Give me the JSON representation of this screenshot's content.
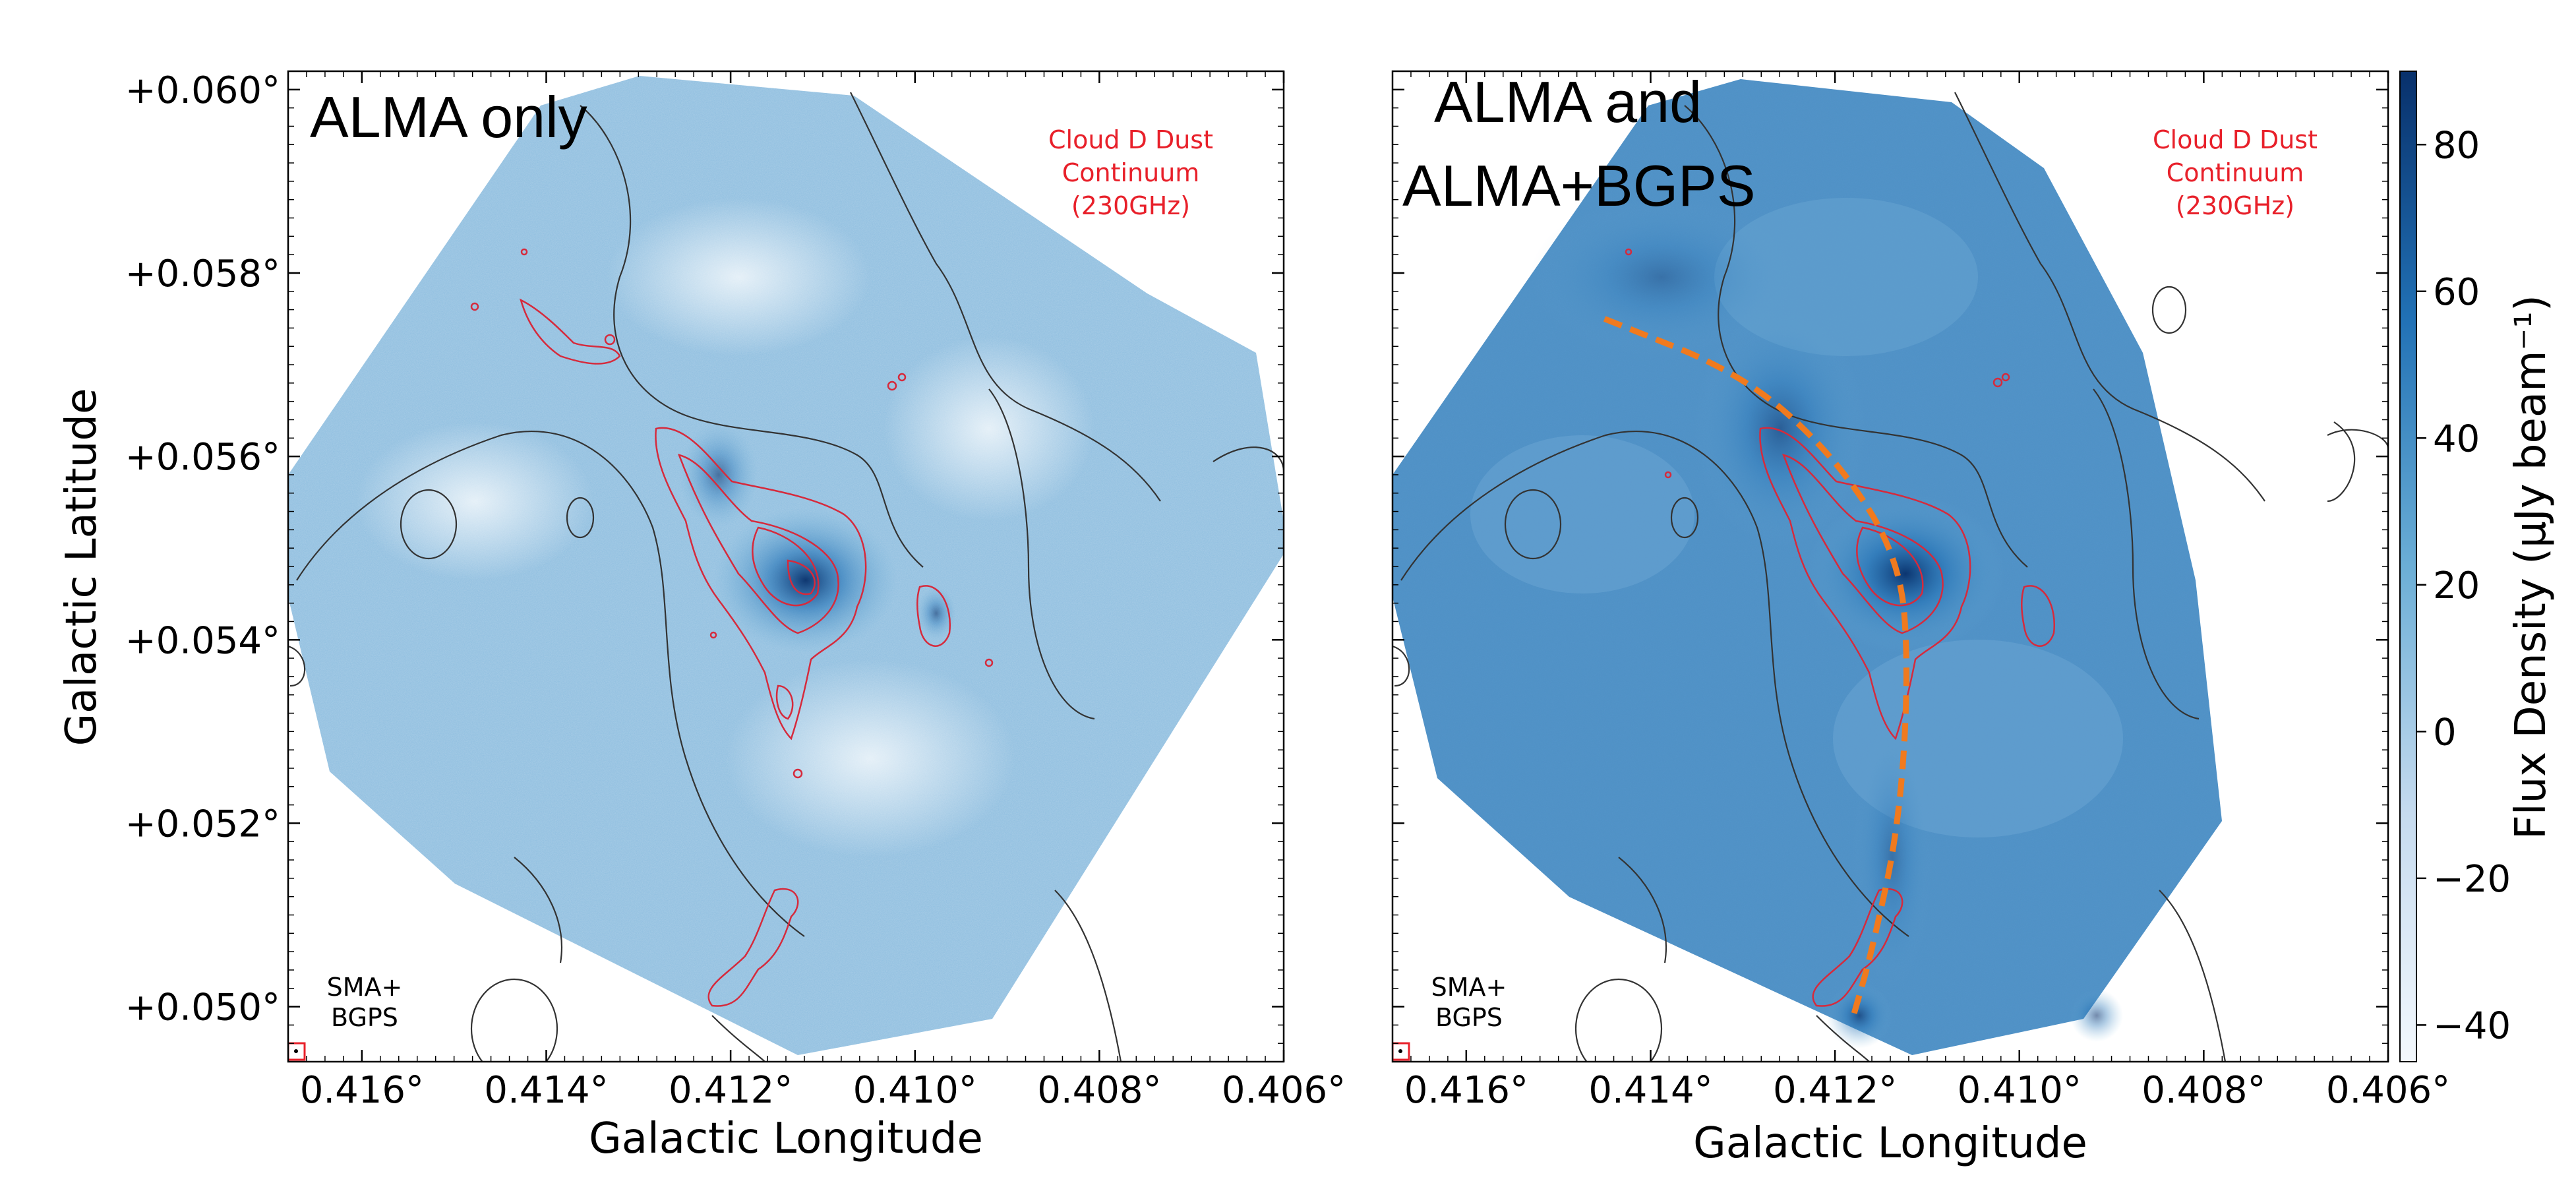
{
  "chart_data": [
    {
      "type": "heatmap",
      "panel": "left",
      "title": "ALMA only",
      "annotation": [
        "Cloud D Dust",
        "Continuum",
        "(230GHz)"
      ],
      "beam_label": [
        "SMA+",
        "BGPS"
      ],
      "xlabel": "Galactic Longitude",
      "ylabel": "Galactic Latitude",
      "xlim": [
        0.4168,
        0.406
      ],
      "ylim": [
        0.0494,
        0.0602
      ],
      "x_ticks": [
        0.416,
        0.414,
        0.412,
        0.41,
        0.408,
        0.406
      ],
      "x_tick_labels": [
        "0.416°",
        "0.414°",
        "0.412°",
        "0.410°",
        "0.408°",
        "0.406°"
      ],
      "y_ticks": [
        0.06,
        0.058,
        0.056,
        0.054,
        0.052,
        0.05
      ],
      "y_tick_labels": [
        "+0.060°",
        "+0.058°",
        "+0.056°",
        "+0.054°",
        "+0.052°",
        "+0.050°"
      ],
      "peak_position": [
        0.4111,
        0.0547
      ]
    },
    {
      "type": "heatmap",
      "panel": "right",
      "title": [
        "ALMA and",
        "ALMA+BGPS"
      ],
      "annotation": [
        "Cloud D Dust",
        "Continuum",
        "(230GHz)"
      ],
      "beam_label": [
        "SMA+",
        "BGPS"
      ],
      "xlabel": "Galactic Longitude",
      "xlim": [
        0.4168,
        0.406
      ],
      "ylim": [
        0.0494,
        0.0602
      ],
      "x_ticks": [
        0.416,
        0.414,
        0.412,
        0.41,
        0.408,
        0.406
      ],
      "x_tick_labels": [
        "0.416°",
        "0.414°",
        "0.412°",
        "0.410°",
        "0.408°",
        "0.406°"
      ],
      "filament_ridge": {
        "name": "orange dashed filament",
        "points": [
          [
            0.4145,
            0.0575
          ],
          [
            0.413,
            0.0569
          ],
          [
            0.412,
            0.056
          ],
          [
            0.4113,
            0.0549
          ],
          [
            0.4112,
            0.0537
          ],
          [
            0.4113,
            0.052
          ],
          [
            0.4116,
            0.0506
          ],
          [
            0.4118,
            0.0499
          ]
        ]
      },
      "peak_position": [
        0.4111,
        0.0547
      ]
    }
  ],
  "colorbar": {
    "label": "Flux Density (μJy beam⁻¹)",
    "range": [
      -45,
      90
    ],
    "ticks": [
      80,
      60,
      40,
      20,
      0,
      -20,
      -40
    ],
    "tick_labels": [
      "80",
      "60",
      "40",
      "20",
      "0",
      "−20",
      "−40"
    ]
  },
  "colors": {
    "map_light": "#dbe9f6",
    "map_mid": "#6aaed6",
    "map_dark": "#08306b",
    "contour_red": "#d62a3c",
    "contour_black": "#333333",
    "filament": "#f07a1e",
    "annotation_red": "#e8202a"
  }
}
